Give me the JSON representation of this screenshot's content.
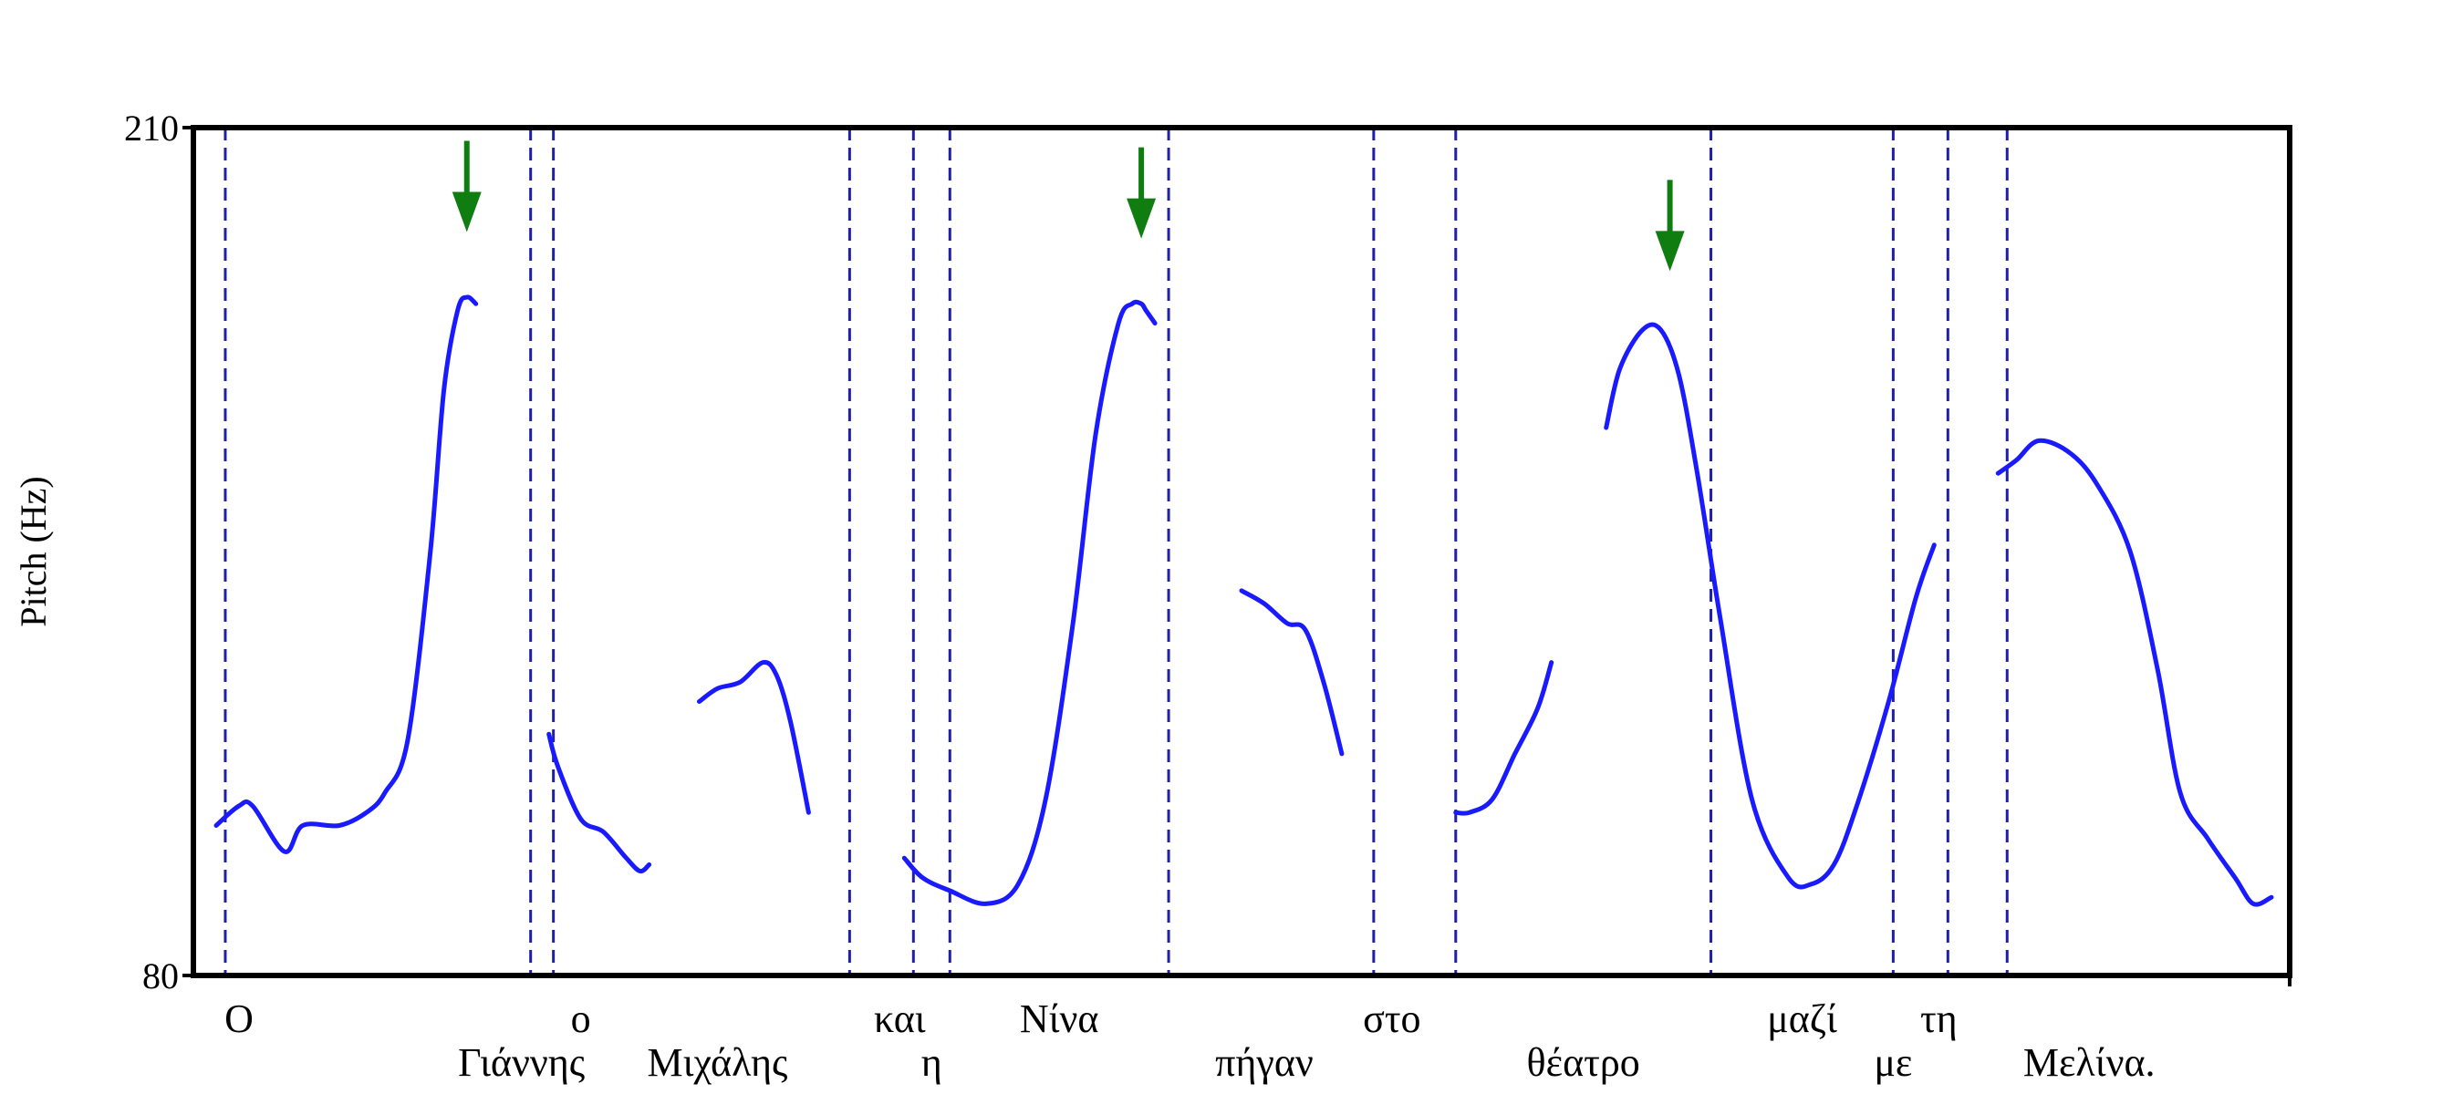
{
  "chart_data": {
    "type": "line",
    "title": "",
    "xlabel": "",
    "ylabel": "Pitch (Hz)",
    "ylim": [
      80,
      210
    ],
    "yticks": [
      "210",
      "80"
    ],
    "grid": false,
    "colors": {
      "contour": "#1a1aff",
      "boundary": "#1f1faa",
      "arrow": "#0f7d0f",
      "axis": "#000000"
    },
    "boundaries": [
      0.07,
      0.74,
      0.79,
      1.44,
      1.58,
      1.66,
      2.14,
      2.59,
      2.77,
      3.33,
      3.73,
      3.85,
      3.98
    ],
    "words": [
      {
        "text": "Ο",
        "x": 0.1,
        "row": 1
      },
      {
        "text": "Γιάννης",
        "x": 0.72,
        "row": 2
      },
      {
        "text": "ο",
        "x": 0.85,
        "row": 1
      },
      {
        "text": "Μιχάλης",
        "x": 1.15,
        "row": 2
      },
      {
        "text": "και",
        "x": 1.55,
        "row": 1
      },
      {
        "text": "η",
        "x": 1.62,
        "row": 2
      },
      {
        "text": "Νίνα",
        "x": 1.9,
        "row": 1
      },
      {
        "text": "πήγαν",
        "x": 2.35,
        "row": 2
      },
      {
        "text": "στο",
        "x": 2.63,
        "row": 1
      },
      {
        "text": "θέατρο",
        "x": 3.05,
        "row": 2
      },
      {
        "text": "μαζί",
        "x": 3.53,
        "row": 1
      },
      {
        "text": "με",
        "x": 3.73,
        "row": 2
      },
      {
        "text": "τη",
        "x": 3.83,
        "row": 1
      },
      {
        "text": "Μελίνα.",
        "x": 4.16,
        "row": 2
      }
    ],
    "arrows": [
      {
        "x": 0.6,
        "y": 194
      },
      {
        "x": 2.08,
        "y": 193
      },
      {
        "x": 3.24,
        "y": 188
      }
    ],
    "series": [
      {
        "x": [
          0.05,
          0.1,
          0.13,
          0.2,
          0.24,
          0.32,
          0.38,
          0.42,
          0.47,
          0.52,
          0.55,
          0.58,
          0.6,
          0.62
        ],
        "y": [
          103,
          106,
          106,
          99,
          103,
          103,
          105,
          108,
          116,
          145,
          170,
          182,
          184,
          183
        ]
      },
      {
        "x": [
          0.78,
          0.8,
          0.85,
          0.9,
          0.95,
          0.98,
          1.0
        ],
        "y": [
          117,
          112,
          104,
          102,
          98,
          96,
          97
        ]
      },
      {
        "x": [
          1.11,
          1.15,
          1.2,
          1.25,
          1.28,
          1.31,
          1.35
        ],
        "y": [
          122,
          124,
          125,
          128,
          126,
          119,
          105
        ]
      },
      {
        "x": [
          1.56,
          1.6,
          1.66,
          1.74,
          1.81,
          1.87,
          1.93,
          1.98,
          2.03,
          2.06,
          2.08,
          2.09,
          2.11
        ],
        "y": [
          98,
          95,
          93,
          91,
          94,
          107,
          134,
          163,
          180,
          183,
          183,
          182,
          180
        ]
      },
      {
        "x": [
          2.3,
          2.35,
          2.4,
          2.44,
          2.48,
          2.52
        ],
        "y": [
          139,
          137,
          134,
          133,
          125,
          114
        ]
      },
      {
        "x": [
          2.77,
          2.8,
          2.85,
          2.9,
          2.95,
          2.98
        ],
        "y": [
          105,
          105,
          107,
          114,
          121,
          128
        ]
      },
      {
        "x": [
          3.1,
          3.13,
          3.18,
          3.22,
          3.26,
          3.3,
          3.35,
          3.42,
          3.5,
          3.55,
          3.6,
          3.65,
          3.72,
          3.78,
          3.82
        ],
        "y": [
          164,
          173,
          179,
          179,
          172,
          157,
          135,
          107,
          95,
          94,
          97,
          106,
          122,
          138,
          146
        ]
      },
      {
        "x": [
          3.96,
          4.0,
          4.05,
          4.12,
          4.18,
          4.25,
          4.31,
          4.36,
          4.42,
          4.48,
          4.52,
          4.56
        ],
        "y": [
          157,
          159,
          162,
          160,
          155,
          145,
          127,
          108,
          101,
          95,
          91,
          92
        ]
      }
    ]
  }
}
